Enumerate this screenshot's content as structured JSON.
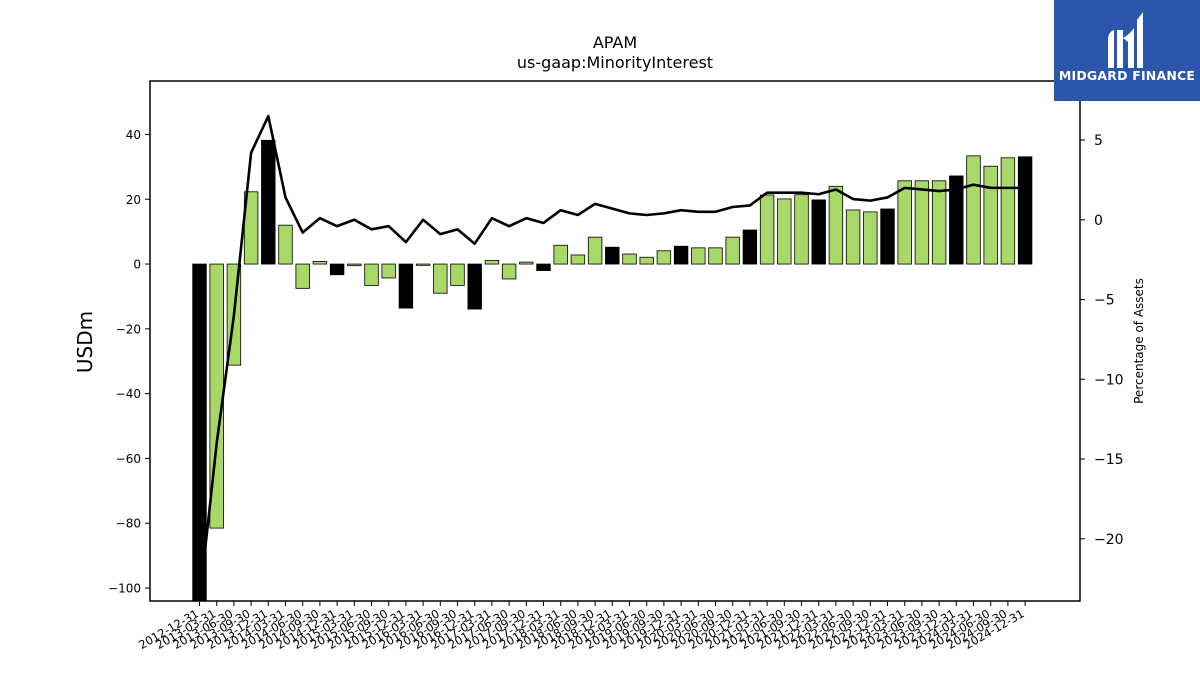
{
  "brand": {
    "name": "MIDGARD FINANCE",
    "color": "#2c56ab"
  },
  "chart_data": {
    "type": "bar",
    "title": "APAM",
    "subtitle": "us-gaap:MinorityInterest",
    "ylabel": "USDm",
    "y2label": "Percentage of Assets",
    "ylim": [
      -104,
      56.5
    ],
    "y2lim": [
      -23.9,
      8.7
    ],
    "yticks": [
      -100,
      -80,
      -60,
      -40,
      -20,
      0,
      20,
      40
    ],
    "y2ticks": [
      -20,
      -15,
      -10,
      -5,
      0,
      5
    ],
    "colors": {
      "quarterly": "#a8d868",
      "annual": "#000000",
      "line": "#000000"
    },
    "categories": [
      "2012-12-31",
      "2013-03-31",
      "2013-06-30",
      "2013-09-30",
      "2013-12-31",
      "2014-03-31",
      "2014-06-30",
      "2014-09-30",
      "2014-12-31",
      "2015-03-31",
      "2015-06-30",
      "2015-09-30",
      "2015-12-31",
      "2016-03-31",
      "2016-06-30",
      "2016-09-30",
      "2016-12-31",
      "2017-03-31",
      "2017-06-30",
      "2017-09-30",
      "2017-12-31",
      "2018-03-31",
      "2018-06-30",
      "2018-09-30",
      "2018-12-31",
      "2019-03-31",
      "2019-06-30",
      "2019-09-30",
      "2019-12-31",
      "2020-03-31",
      "2020-06-30",
      "2020-09-30",
      "2020-12-31",
      "2021-03-31",
      "2021-06-30",
      "2021-09-30",
      "2021-12-31",
      "2022-03-31",
      "2022-06-30",
      "2022-09-30",
      "2022-12-31",
      "2023-03-31",
      "2023-06-30",
      "2023-09-30",
      "2023-12-31",
      "2024-03-31",
      "2024-06-30",
      "2024-09-30",
      "2024-12-31"
    ],
    "series": [
      {
        "role": "bars",
        "values": [
          -104,
          -81.5,
          -31.2,
          22.3,
          38.2,
          12.0,
          -7.5,
          0.8,
          -3.3,
          -0.5,
          -6.6,
          -4.3,
          -13.6,
          -0.4,
          -9.0,
          -6.6,
          -13.9,
          1.1,
          -4.6,
          0.6,
          -2.0,
          5.8,
          2.8,
          8.3,
          5.2,
          3.1,
          2.1,
          4.1,
          5.5,
          5.0,
          5.0,
          8.3,
          10.5,
          21.3,
          20.1,
          21.4,
          19.8,
          24.0,
          16.7,
          16.1,
          17.0,
          25.7,
          25.7,
          25.7,
          27.2,
          33.4,
          30.2,
          32.8,
          33.1
        ],
        "annual": [
          true,
          false,
          false,
          false,
          true,
          false,
          false,
          false,
          true,
          false,
          false,
          false,
          true,
          false,
          false,
          false,
          true,
          false,
          false,
          false,
          true,
          false,
          false,
          false,
          true,
          false,
          false,
          false,
          true,
          false,
          false,
          false,
          true,
          false,
          false,
          false,
          true,
          false,
          false,
          false,
          true,
          false,
          false,
          false,
          true,
          false,
          false,
          false,
          true
        ]
      },
      {
        "role": "line",
        "axis": "right",
        "values": [
          -23.9,
          -14.0,
          -6.0,
          4.2,
          6.5,
          1.4,
          -0.8,
          0.1,
          -0.4,
          0.0,
          -0.6,
          -0.4,
          -1.4,
          0.0,
          -0.9,
          -0.6,
          -1.5,
          0.1,
          -0.4,
          0.1,
          -0.2,
          0.6,
          0.3,
          1.0,
          0.7,
          0.4,
          0.3,
          0.4,
          0.6,
          0.5,
          0.5,
          0.8,
          0.9,
          1.7,
          1.7,
          1.7,
          1.6,
          1.9,
          1.3,
          1.2,
          1.4,
          2.0,
          1.9,
          1.8,
          1.9,
          2.2,
          2.0,
          2.0,
          2.0
        ]
      }
    ]
  }
}
